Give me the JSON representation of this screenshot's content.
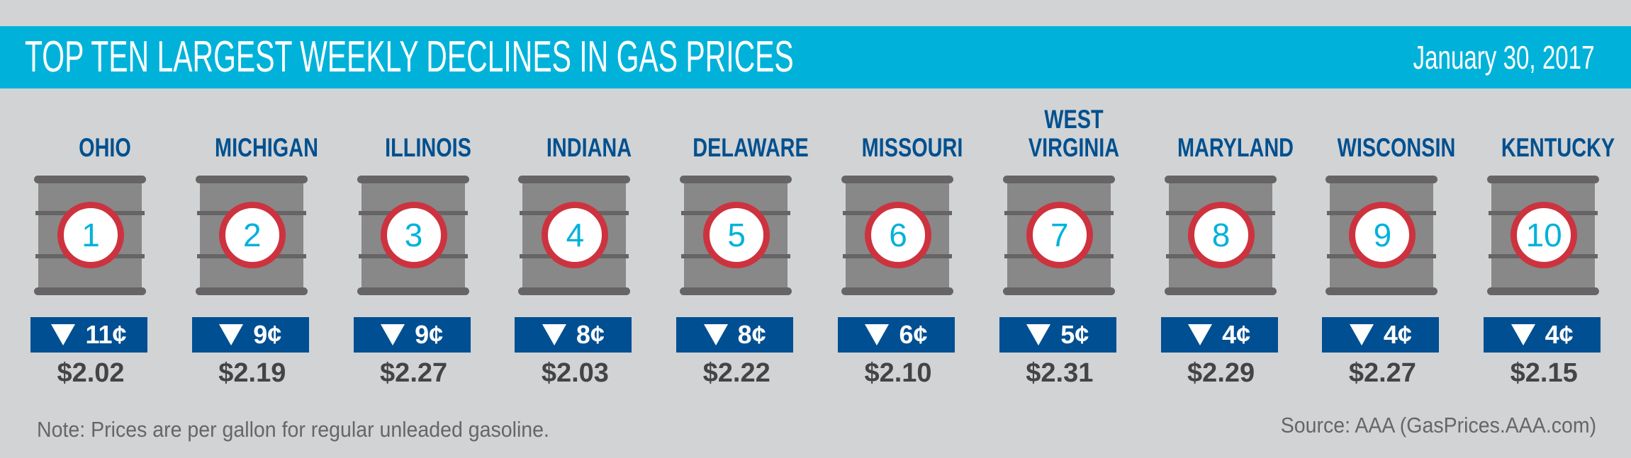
{
  "header": {
    "title": "TOP TEN LARGEST WEEKLY DECLINES IN GAS PRICES",
    "date": "January 30, 2017"
  },
  "colors": {
    "banner": "#00B2DA",
    "state_text": "#00508F",
    "badge": "#004F93",
    "rank_ring": "#CC333F",
    "rank_number": "#00B2DA",
    "barrel_body": "#888888",
    "barrel_rim": "#666465",
    "background": "#D1D3D5"
  },
  "icons": {
    "decline_arrow": "down-triangle-icon",
    "barrel": "oil-barrel-icon"
  },
  "states": [
    {
      "rank": "1",
      "name": "OHIO",
      "decline": "11¢",
      "price": "$2.02"
    },
    {
      "rank": "2",
      "name": "MICHIGAN",
      "decline": "9¢",
      "price": "$2.19"
    },
    {
      "rank": "3",
      "name": "ILLINOIS",
      "decline": "9¢",
      "price": "$2.27"
    },
    {
      "rank": "4",
      "name": "INDIANA",
      "decline": "8¢",
      "price": "$2.03"
    },
    {
      "rank": "5",
      "name": "DELAWARE",
      "decline": "8¢",
      "price": "$2.22"
    },
    {
      "rank": "6",
      "name": "MISSOURI",
      "decline": "6¢",
      "price": "$2.10"
    },
    {
      "rank": "7",
      "name": "WEST\nVIRGINIA",
      "decline": "5¢",
      "price": "$2.31"
    },
    {
      "rank": "8",
      "name": "MARYLAND",
      "decline": "4¢",
      "price": "$2.29"
    },
    {
      "rank": "9",
      "name": "WISCONSIN",
      "decline": "4¢",
      "price": "$2.27"
    },
    {
      "rank": "10",
      "name": "KENTUCKY",
      "decline": "4¢",
      "price": "$2.15"
    }
  ],
  "footer": {
    "note": "Note: Prices are per gallon for regular unleaded gasoline.",
    "source": "Source: AAA (GasPrices.AAA.com)"
  }
}
